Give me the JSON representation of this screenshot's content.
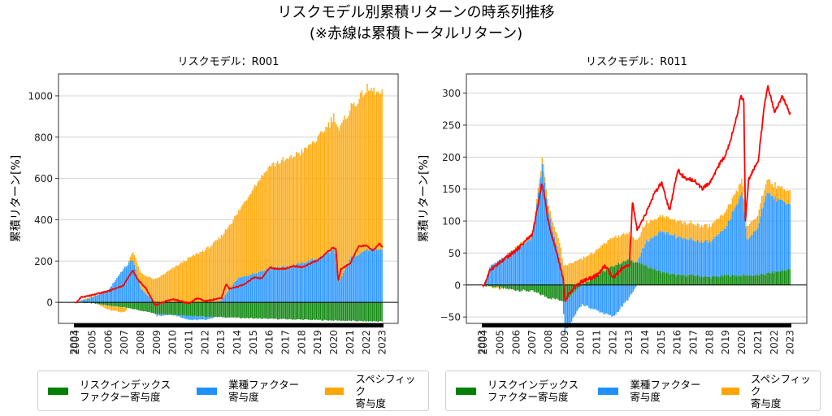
{
  "title_line1": "リスクモデル別累積リターンの時系列推移",
  "title_line2": "(※赤線は累積トータルリターン)",
  "colors": {
    "risk_index": "#008000",
    "industry": "#1e90ff",
    "specific": "#ffa500",
    "total": "#ff0000"
  },
  "legend": [
    {
      "key": "risk_index",
      "label": "リスクインデックス\nファクター寄与度"
    },
    {
      "key": "industry",
      "label": "業種ファクター\n寄与度"
    },
    {
      "key": "specific",
      "label": "スペシフィック\n寄与度"
    }
  ],
  "chart_data": [
    {
      "type": "bar",
      "title": "リスクモデル：R001",
      "xlabel": "",
      "ylabel": "累積リターン[%]",
      "ylim": [
        -102,
        1106
      ],
      "yticks": [
        0,
        200,
        400,
        600,
        800,
        1000
      ],
      "xticks": [
        "2003",
        "2004",
        "2005",
        "2006",
        "2007",
        "2008",
        "2008",
        "2009",
        "2010",
        "2011",
        "2012",
        "2013",
        "2014",
        "2015",
        "2016",
        "2017",
        "2018",
        "2019",
        "2020",
        "2021",
        "2022",
        "2023"
      ],
      "stacked": true,
      "grid": "y",
      "series": [
        {
          "name": "リスクインデックスファクター寄与度",
          "key": "risk_index",
          "points": [
            [
              2004,
              0
            ],
            [
              2005,
              -5
            ],
            [
              2006,
              -15
            ],
            [
              2007,
              -25
            ],
            [
              2008,
              -40
            ],
            [
              2009,
              -55
            ],
            [
              2010,
              -60
            ],
            [
              2011,
              -65
            ],
            [
              2012,
              -70
            ],
            [
              2013,
              -72
            ],
            [
              2014,
              -75
            ],
            [
              2015,
              -78
            ],
            [
              2016,
              -80
            ],
            [
              2017,
              -82
            ],
            [
              2018,
              -84
            ],
            [
              2019,
              -86
            ],
            [
              2020,
              -88
            ],
            [
              2021,
              -90
            ],
            [
              2022,
              -92
            ],
            [
              2023,
              -92
            ]
          ]
        },
        {
          "name": "業種ファクター寄与度",
          "key": "industry",
          "points": [
            [
              2004,
              0
            ],
            [
              2005,
              25
            ],
            [
              2006,
              60
            ],
            [
              2006.8,
              150
            ],
            [
              2007.5,
              210
            ],
            [
              2008,
              65
            ],
            [
              2009,
              -10
            ],
            [
              2010,
              0
            ],
            [
              2011,
              -20
            ],
            [
              2012,
              -15
            ],
            [
              2013,
              10
            ],
            [
              2014,
              115
            ],
            [
              2015,
              140
            ],
            [
              2016,
              165
            ],
            [
              2017,
              175
            ],
            [
              2018,
              190
            ],
            [
              2019,
              215
            ],
            [
              2020,
              255
            ],
            [
              2020.3,
              100
            ],
            [
              2021,
              215
            ],
            [
              2022,
              255
            ],
            [
              2023,
              255
            ]
          ]
        },
        {
          "name": "スペシフィック寄与度",
          "key": "specific",
          "points": [
            [
              2004,
              0
            ],
            [
              2005,
              5
            ],
            [
              2006,
              -20
            ],
            [
              2007,
              -25
            ],
            [
              2007.5,
              40
            ],
            [
              2008,
              75
            ],
            [
              2009,
              115
            ],
            [
              2010,
              165
            ],
            [
              2011,
              215
            ],
            [
              2012,
              255
            ],
            [
              2013,
              310
            ],
            [
              2014,
              315
            ],
            [
              2015,
              420
            ],
            [
              2016,
              500
            ],
            [
              2017,
              515
            ],
            [
              2018,
              540
            ],
            [
              2019,
              580
            ],
            [
              2020,
              645
            ],
            [
              2020.3,
              730
            ],
            [
              2021,
              725
            ],
            [
              2022,
              775
            ],
            [
              2023,
              750
            ]
          ]
        }
      ],
      "total_line": {
        "name": "累積トータルリターン",
        "points": [
          [
            2004,
            0
          ],
          [
            2004.3,
            25
          ],
          [
            2005,
            35
          ],
          [
            2006,
            55
          ],
          [
            2006.9,
            80
          ],
          [
            2007.5,
            155
          ],
          [
            2007.8,
            110
          ],
          [
            2008.3,
            70
          ],
          [
            2008.9,
            -15
          ],
          [
            2009.5,
            5
          ],
          [
            2010,
            15
          ],
          [
            2010.5,
            5
          ],
          [
            2011,
            -5
          ],
          [
            2011.5,
            20
          ],
          [
            2012,
            5
          ],
          [
            2013,
            20
          ],
          [
            2013.3,
            90
          ],
          [
            2013.5,
            65
          ],
          [
            2014,
            75
          ],
          [
            2014.5,
            90
          ],
          [
            2015,
            120
          ],
          [
            2015.5,
            115
          ],
          [
            2016,
            170
          ],
          [
            2016.5,
            160
          ],
          [
            2017,
            165
          ],
          [
            2017.5,
            175
          ],
          [
            2018,
            170
          ],
          [
            2019,
            205
          ],
          [
            2019.9,
            265
          ],
          [
            2020.1,
            260
          ],
          [
            2020.25,
            100
          ],
          [
            2020.4,
            160
          ],
          [
            2021,
            190
          ],
          [
            2021.5,
            270
          ],
          [
            2022,
            275
          ],
          [
            2022.4,
            250
          ],
          [
            2022.8,
            285
          ],
          [
            2023,
            265
          ]
        ]
      }
    },
    {
      "type": "bar",
      "title": "リスクモデル：R011",
      "xlabel": "",
      "ylabel": "累積リターン[%]",
      "ylim": [
        -60,
        330
      ],
      "yticks": [
        -50,
        0,
        50,
        100,
        150,
        200,
        250,
        300
      ],
      "xticks": [
        "2003",
        "2004",
        "2005",
        "2006",
        "2007",
        "2008",
        "2008",
        "2009",
        "2010",
        "2011",
        "2012",
        "2013",
        "2014",
        "2015",
        "2016",
        "2017",
        "2018",
        "2019",
        "2020",
        "2021",
        "2022",
        "2023"
      ],
      "stacked": true,
      "grid": "y",
      "series": [
        {
          "name": "リスクインデックスファクター寄与度",
          "key": "risk_index",
          "points": [
            [
              2004,
              0
            ],
            [
              2005,
              -5
            ],
            [
              2006,
              -8
            ],
            [
              2007,
              -10
            ],
            [
              2008,
              -20
            ],
            [
              2009,
              -25
            ],
            [
              2010,
              0
            ],
            [
              2011,
              15
            ],
            [
              2012,
              30
            ],
            [
              2013,
              40
            ],
            [
              2014,
              30
            ],
            [
              2015,
              20
            ],
            [
              2016,
              15
            ],
            [
              2017,
              15
            ],
            [
              2018,
              12
            ],
            [
              2019,
              15
            ],
            [
              2020,
              15
            ],
            [
              2021,
              15
            ],
            [
              2022,
              20
            ],
            [
              2023,
              25
            ]
          ]
        },
        {
          "name": "業種ファクター寄与度",
          "key": "industry",
          "points": [
            [
              2004,
              0
            ],
            [
              2004.4,
              30
            ],
            [
              2005,
              40
            ],
            [
              2006,
              55
            ],
            [
              2007,
              75
            ],
            [
              2007.6,
              190
            ],
            [
              2008,
              110
            ],
            [
              2008.8,
              30
            ],
            [
              2009,
              -50
            ],
            [
              2010,
              -30
            ],
            [
              2011,
              -40
            ],
            [
              2012,
              -50
            ],
            [
              2013,
              -20
            ],
            [
              2013.5,
              0
            ],
            [
              2014,
              35
            ],
            [
              2015,
              65
            ],
            [
              2016,
              60
            ],
            [
              2017,
              55
            ],
            [
              2018,
              55
            ],
            [
              2019,
              75
            ],
            [
              2020,
              130
            ],
            [
              2020.3,
              55
            ],
            [
              2021,
              75
            ],
            [
              2021.5,
              130
            ],
            [
              2022,
              115
            ],
            [
              2023,
              100
            ]
          ]
        },
        {
          "name": "スペシフィック寄与度",
          "key": "specific",
          "points": [
            [
              2004,
              0
            ],
            [
              2005,
              -3
            ],
            [
              2006,
              5
            ],
            [
              2007,
              5
            ],
            [
              2007.6,
              10
            ],
            [
              2008,
              10
            ],
            [
              2009,
              30
            ],
            [
              2010,
              40
            ],
            [
              2011,
              40
            ],
            [
              2012,
              45
            ],
            [
              2013,
              40
            ],
            [
              2014,
              30
            ],
            [
              2015,
              25
            ],
            [
              2016,
              25
            ],
            [
              2017,
              25
            ],
            [
              2018,
              25
            ],
            [
              2019,
              25
            ],
            [
              2020,
              20
            ],
            [
              2021,
              20
            ],
            [
              2022,
              20
            ],
            [
              2023,
              20
            ]
          ]
        }
      ],
      "total_line": {
        "name": "累積トータルリターン",
        "points": [
          [
            2004,
            0
          ],
          [
            2004.4,
            25
          ],
          [
            2005,
            35
          ],
          [
            2006,
            55
          ],
          [
            2007,
            80
          ],
          [
            2007.6,
            160
          ],
          [
            2008,
            95
          ],
          [
            2008.5,
            50
          ],
          [
            2008.9,
            10
          ],
          [
            2009,
            -25
          ],
          [
            2009.5,
            -5
          ],
          [
            2010,
            5
          ],
          [
            2010.5,
            10
          ],
          [
            2011,
            15
          ],
          [
            2011.5,
            30
          ],
          [
            2012,
            10
          ],
          [
            2012.5,
            25
          ],
          [
            2013,
            30
          ],
          [
            2013.2,
            130
          ],
          [
            2013.5,
            85
          ],
          [
            2014,
            110
          ],
          [
            2014.5,
            140
          ],
          [
            2015,
            160
          ],
          [
            2015.5,
            115
          ],
          [
            2016,
            180
          ],
          [
            2016.5,
            165
          ],
          [
            2017,
            165
          ],
          [
            2017.5,
            150
          ],
          [
            2018,
            160
          ],
          [
            2018.5,
            185
          ],
          [
            2019,
            205
          ],
          [
            2019.6,
            255
          ],
          [
            2019.9,
            295
          ],
          [
            2020.1,
            290
          ],
          [
            2020.2,
            100
          ],
          [
            2020.4,
            165
          ],
          [
            2021,
            195
          ],
          [
            2021.4,
            285
          ],
          [
            2021.6,
            310
          ],
          [
            2022,
            270
          ],
          [
            2022.5,
            295
          ],
          [
            2023,
            265
          ]
        ]
      }
    }
  ]
}
